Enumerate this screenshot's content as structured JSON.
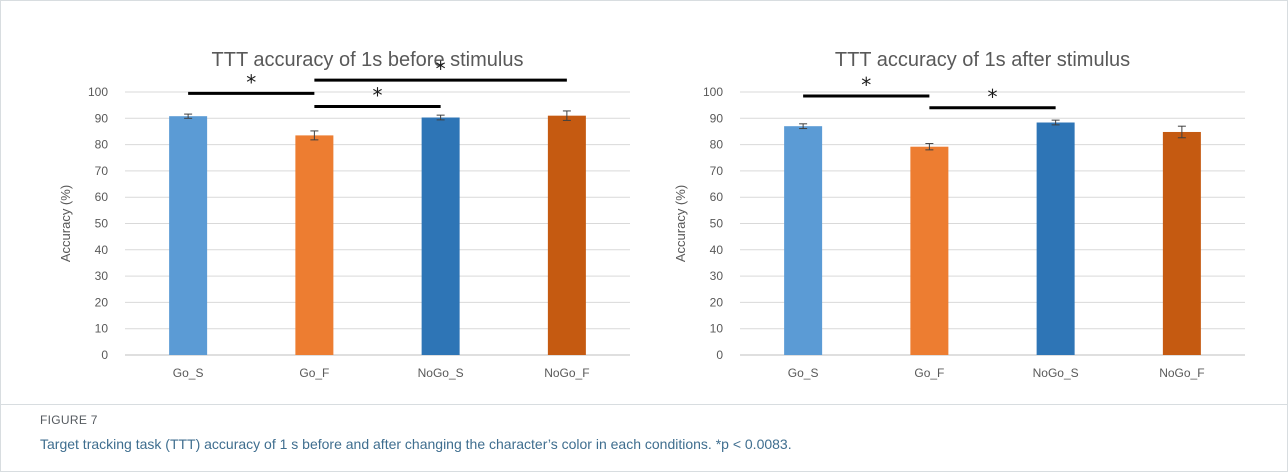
{
  "chart_data": [
    {
      "type": "bar",
      "title": "TTT accuracy of 1s before stimulus",
      "ylabel": "Accuracy (%)",
      "xlabel": "",
      "ylim": [
        0,
        100
      ],
      "yticks": [
        0,
        10,
        20,
        30,
        40,
        50,
        60,
        70,
        80,
        90,
        100
      ],
      "grid": true,
      "categories": [
        "Go_S",
        "Go_F",
        "NoGo_S",
        "NoGo_F"
      ],
      "values": [
        90.8,
        83.5,
        90.3,
        91.0
      ],
      "errors": [
        0.8,
        1.7,
        0.9,
        1.8
      ],
      "colors": [
        "#5b9bd5",
        "#ed7d31",
        "#2e75b6",
        "#c55a11"
      ],
      "significance": [
        {
          "from": 0,
          "to": 1,
          "y": 99.5,
          "label": "*"
        },
        {
          "from": 1,
          "to": 2,
          "y": 94.5,
          "label": "*"
        },
        {
          "from": 1,
          "to": 3,
          "y": 104.5,
          "label": "*"
        }
      ]
    },
    {
      "type": "bar",
      "title": "TTT accuracy of 1s after stimulus",
      "ylabel": "Accuracy (%)",
      "xlabel": "",
      "ylim": [
        0,
        100
      ],
      "yticks": [
        0,
        10,
        20,
        30,
        40,
        50,
        60,
        70,
        80,
        90,
        100
      ],
      "grid": true,
      "categories": [
        "Go_S",
        "Go_F",
        "NoGo_S",
        "NoGo_F"
      ],
      "values": [
        87.0,
        79.2,
        88.4,
        84.8
      ],
      "errors": [
        0.9,
        1.2,
        0.9,
        2.2
      ],
      "colors": [
        "#5b9bd5",
        "#ed7d31",
        "#2e75b6",
        "#c55a11"
      ],
      "significance": [
        {
          "from": 0,
          "to": 1,
          "y": 98.5,
          "label": "*"
        },
        {
          "from": 1,
          "to": 2,
          "y": 94.0,
          "label": "*"
        }
      ]
    }
  ],
  "figure": {
    "label": "FIGURE 7",
    "caption": "Target tracking task (TTT) accuracy of 1 s before and after changing the character’s color in each conditions. *p < 0.0083."
  }
}
